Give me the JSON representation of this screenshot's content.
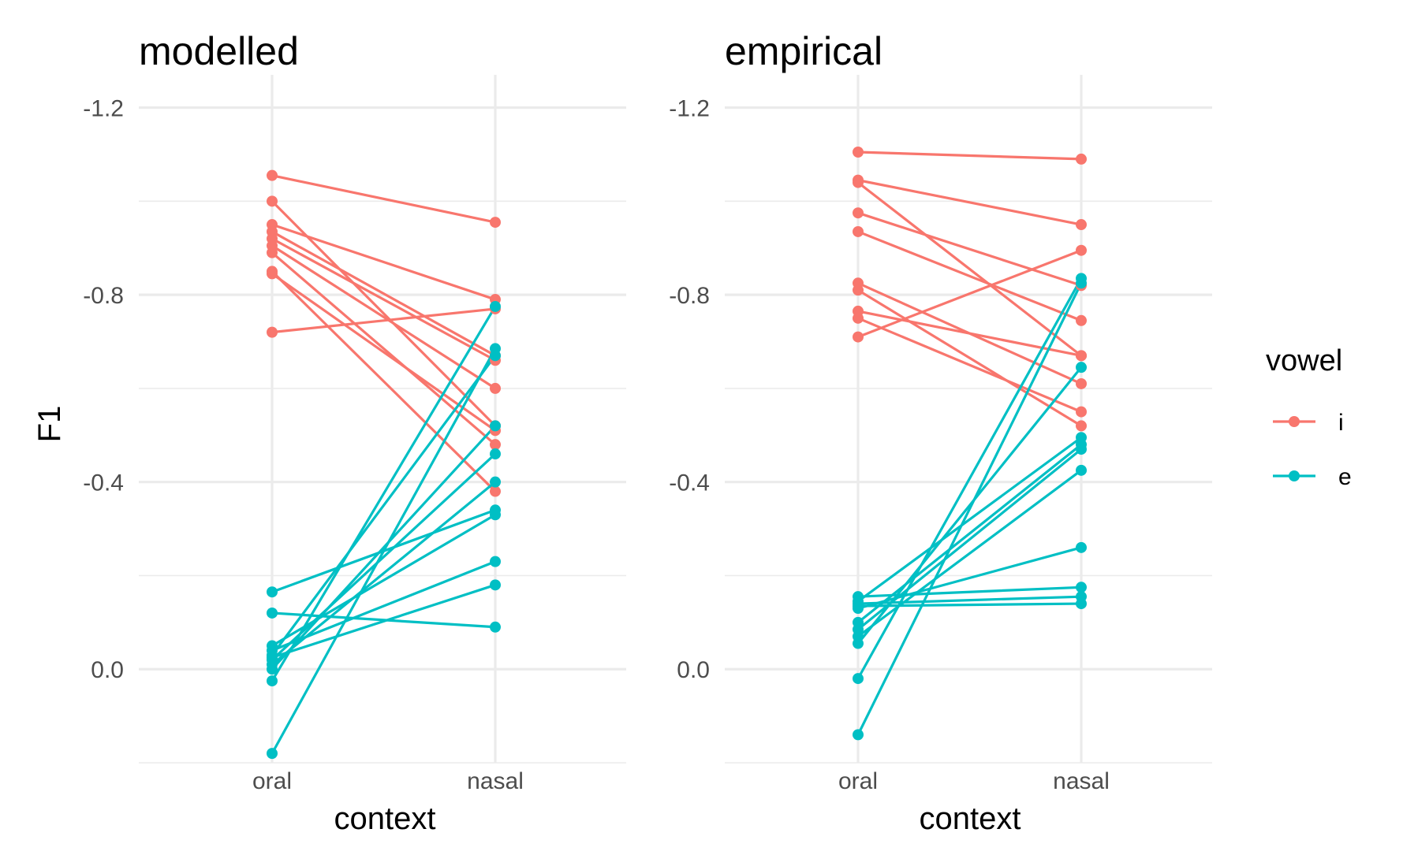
{
  "chart_data": [
    {
      "type": "line",
      "title": "modelled",
      "xlabel": "context",
      "ylabel": "F1",
      "categories": [
        "oral",
        "nasal"
      ],
      "y_reversed": true,
      "ylim": [
        -1.27,
        0.2
      ],
      "yticks": [
        -1.2,
        -0.8,
        -0.4,
        0.0
      ],
      "ytick_labels": [
        "-1.2",
        "-0.8",
        "-0.4",
        "0.0"
      ],
      "grid": true,
      "series": [
        {
          "name": "i",
          "color": "#F8766D",
          "lines": [
            [
              -1.055,
              -0.955
            ],
            [
              -1.0,
              -0.52
            ],
            [
              -0.95,
              -0.79
            ],
            [
              -0.935,
              -0.67
            ],
            [
              -0.92,
              -0.66
            ],
            [
              -0.905,
              -0.6
            ],
            [
              -0.89,
              -0.48
            ],
            [
              -0.85,
              -0.38
            ],
            [
              -0.845,
              -0.51
            ],
            [
              -0.72,
              -0.77
            ]
          ]
        },
        {
          "name": "e",
          "color": "#00BFC4",
          "lines": [
            [
              -0.165,
              -0.34
            ],
            [
              -0.12,
              -0.09
            ],
            [
              -0.05,
              -0.33
            ],
            [
              -0.04,
              -0.23
            ],
            [
              -0.03,
              -0.67
            ],
            [
              -0.025,
              -0.18
            ],
            [
              -0.02,
              -0.46
            ],
            [
              -0.01,
              -0.4
            ],
            [
              0.0,
              -0.52
            ],
            [
              0.025,
              -0.775
            ],
            [
              0.18,
              -0.685
            ]
          ]
        }
      ]
    },
    {
      "type": "line",
      "title": "empirical",
      "xlabel": "context",
      "ylabel": "",
      "categories": [
        "oral",
        "nasal"
      ],
      "y_reversed": true,
      "ylim": [
        -1.27,
        0.2
      ],
      "yticks": [
        -1.2,
        -0.8,
        -0.4,
        0.0
      ],
      "ytick_labels": [
        "-1.2",
        "-0.8",
        "-0.4",
        "0.0"
      ],
      "grid": true,
      "series": [
        {
          "name": "i",
          "color": "#F8766D",
          "lines": [
            [
              -1.105,
              -1.09
            ],
            [
              -1.045,
              -0.95
            ],
            [
              -1.04,
              -0.67
            ],
            [
              -0.975,
              -0.82
            ],
            [
              -0.935,
              -0.745
            ],
            [
              -0.825,
              -0.61
            ],
            [
              -0.81,
              -0.52
            ],
            [
              -0.765,
              -0.67
            ],
            [
              -0.75,
              -0.55
            ],
            [
              -0.71,
              -0.895
            ]
          ]
        },
        {
          "name": "e",
          "color": "#00BFC4",
          "lines": [
            [
              -0.155,
              -0.175
            ],
            [
              -0.14,
              -0.155
            ],
            [
              -0.135,
              -0.14
            ],
            [
              -0.13,
              -0.26
            ],
            [
              -0.145,
              -0.495
            ],
            [
              -0.1,
              -0.48
            ],
            [
              -0.085,
              -0.47
            ],
            [
              -0.07,
              -0.425
            ],
            [
              -0.055,
              -0.645
            ],
            [
              0.02,
              -0.835
            ],
            [
              0.14,
              -0.825
            ]
          ]
        }
      ]
    }
  ],
  "legend": {
    "title": "vowel",
    "position": "right",
    "items": [
      {
        "label": "i",
        "color": "#F8766D"
      },
      {
        "label": "e",
        "color": "#00BFC4"
      }
    ]
  }
}
